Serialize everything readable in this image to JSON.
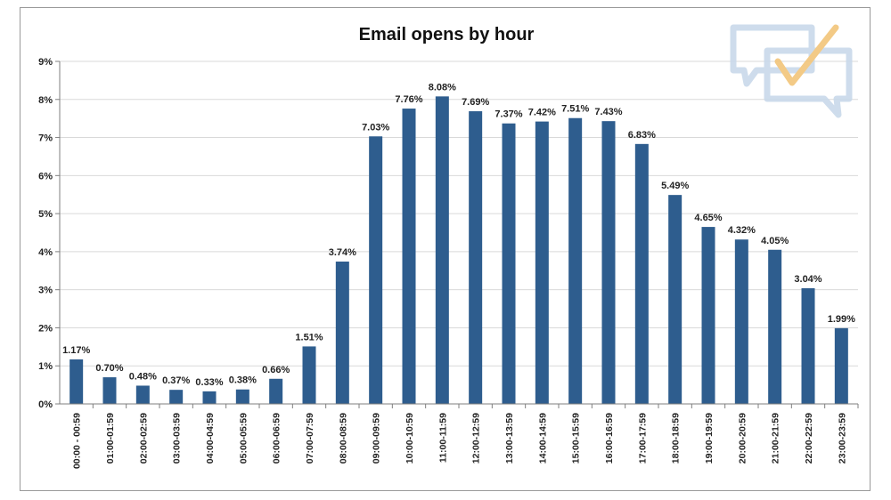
{
  "chart_data": {
    "type": "bar",
    "title": "Email opens by hour",
    "categories": [
      "00:00 - 00:59",
      "01:00-01:59",
      "02:00-02:59",
      "03:00-03:59",
      "04:00-04:59",
      "05:00-05:59",
      "06:00-06:59",
      "07:00-07:59",
      "08:00-08:59",
      "09:00-09:59",
      "10:00-10:59",
      "11:00-11:59",
      "12:00-12:59",
      "13:00-13:59",
      "14:00-14:59",
      "15:00-15:59",
      "16:00-16:59",
      "17:00-17:59",
      "18:00-18:59",
      "19:00-19:59",
      "20:00-20:59",
      "21:00-21:59",
      "22:00-22:59",
      "23:00-23:59"
    ],
    "values": [
      1.17,
      0.7,
      0.48,
      0.37,
      0.33,
      0.38,
      0.66,
      1.51,
      3.74,
      7.03,
      7.76,
      8.08,
      7.69,
      7.37,
      7.42,
      7.51,
      7.43,
      6.83,
      5.49,
      4.65,
      4.32,
      4.05,
      3.04,
      1.99
    ],
    "data_labels": [
      "1.17%",
      "0.70%",
      "0.48%",
      "0.37%",
      "0.33%",
      "0.38%",
      "0.66%",
      "1.51%",
      "3.74%",
      "7.03%",
      "7.76%",
      "8.08%",
      "7.69%",
      "7.37%",
      "7.42%",
      "7.51%",
      "7.43%",
      "6.83%",
      "5.49%",
      "4.65%",
      "4.32%",
      "4.05%",
      "3.04%",
      "1.99%"
    ],
    "y_ticks": [
      "0%",
      "1%",
      "2%",
      "3%",
      "4%",
      "5%",
      "6%",
      "7%",
      "8%",
      "9%"
    ],
    "ylim": [
      0,
      9
    ],
    "grid": true,
    "legend": false,
    "bar_color": "#2e5d8e",
    "xlabel": "",
    "ylabel": ""
  },
  "watermark": {
    "icon": "speech-bubble-checkmark-icon",
    "bubble_color": "#c9d9ea",
    "check_color": "#f2c57a"
  }
}
